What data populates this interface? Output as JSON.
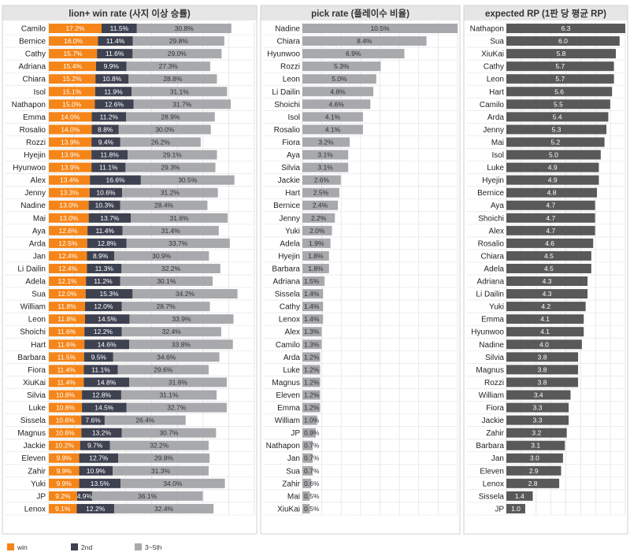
{
  "chart_data": [
    {
      "type": "bar",
      "stacked": true,
      "orientation": "horizontal",
      "title": "lion+ win rate (사지 이상 승률)",
      "categories": [
        "Camilo",
        "Bernice",
        "Cathy",
        "Adriana",
        "Chiara",
        "Isol",
        "Nathapon",
        "Emma",
        "Rosalio",
        "Rozzi",
        "Hyejin",
        "Hyunwoo",
        "Alex",
        "Jenny",
        "Nadine",
        "Mai",
        "Aya",
        "Arda",
        "Jan",
        "Li Dailin",
        "Adela",
        "Sua",
        "William",
        "Leon",
        "Shoichi",
        "Hart",
        "Barbara",
        "Fiora",
        "XiuKai",
        "Silvia",
        "Luke",
        "Sissela",
        "Magnus",
        "Jackie",
        "Eleven",
        "Zahir",
        "Yuki",
        "JP",
        "Lenox"
      ],
      "series": [
        {
          "name": "win",
          "color": "#f58518",
          "values": [
            17.2,
            16.0,
            15.7,
            15.4,
            15.2,
            15.1,
            15.0,
            14.0,
            14.0,
            13.9,
            13.9,
            13.9,
            13.4,
            13.3,
            13.0,
            13.0,
            12.6,
            12.5,
            12.4,
            12.4,
            12.1,
            12.0,
            11.8,
            11.8,
            11.6,
            11.6,
            11.5,
            11.4,
            11.4,
            10.8,
            10.8,
            10.6,
            10.6,
            10.2,
            9.9,
            9.9,
            9.9,
            9.2,
            9.1
          ]
        },
        {
          "name": "2nd",
          "color": "#3d4150",
          "values": [
            11.5,
            11.4,
            11.6,
            9.9,
            10.8,
            11.9,
            12.6,
            11.2,
            8.8,
            9.4,
            11.8,
            11.1,
            16.6,
            10.6,
            10.3,
            13.7,
            11.4,
            12.8,
            8.9,
            11.3,
            11.2,
            15.3,
            12.0,
            14.5,
            12.2,
            14.6,
            9.5,
            11.1,
            14.8,
            12.8,
            14.5,
            7.6,
            13.2,
            9.7,
            12.7,
            10.9,
            13.5,
            4.9,
            12.2
          ]
        },
        {
          "name": "3~5th",
          "color": "#a7a9ac",
          "values": [
            30.8,
            29.8,
            29.0,
            27.3,
            28.8,
            31.1,
            31.7,
            28.9,
            30.0,
            26.2,
            29.1,
            29.3,
            30.5,
            31.2,
            28.4,
            31.6,
            31.4,
            33.7,
            30.9,
            32.2,
            30.1,
            34.2,
            28.7,
            33.9,
            32.4,
            33.8,
            34.6,
            29.6,
            31.8,
            31.1,
            32.7,
            26.4,
            30.7,
            32.2,
            29.8,
            31.3,
            34.0,
            36.1,
            32.4
          ]
        }
      ],
      "xlim": [
        0,
        67
      ]
    },
    {
      "type": "bar",
      "orientation": "horizontal",
      "title": "pick rate (플레이수 비율)",
      "color": "#a7a9ac",
      "categories": [
        "Nadine",
        "Chiara",
        "Hyunwoo",
        "Rozzi",
        "Leon",
        "Li Dailin",
        "Shoichi",
        "Isol",
        "Rosalio",
        "Fiora",
        "Aya",
        "Silvia",
        "Jackie",
        "Hart",
        "Bernice",
        "Jenny",
        "Yuki",
        "Adela",
        "Hyejin",
        "Barbara",
        "Adriana",
        "Sissela",
        "Cathy",
        "Lenox",
        "Alex",
        "Camilo",
        "Arda",
        "Luke",
        "Magnus",
        "Eleven",
        "Emma",
        "William",
        "JP",
        "Nathapon",
        "Jan",
        "Sua",
        "Zahir",
        "Mai",
        "XiuKai"
      ],
      "values": [
        10.5,
        8.4,
        6.9,
        5.3,
        5.0,
        4.8,
        4.6,
        4.1,
        4.1,
        3.2,
        3.1,
        3.1,
        2.6,
        2.5,
        2.4,
        2.2,
        2.0,
        1.9,
        1.8,
        1.8,
        1.5,
        1.4,
        1.4,
        1.4,
        1.3,
        1.3,
        1.2,
        1.2,
        1.2,
        1.2,
        1.2,
        1.0,
        0.9,
        0.7,
        0.7,
        0.7,
        0.6,
        0.5,
        0.5
      ],
      "xlim": [
        0,
        10.5
      ]
    },
    {
      "type": "bar",
      "orientation": "horizontal",
      "title": "expected RP (1판 당 평균 RP)",
      "color": "#595959",
      "categories": [
        "Nathapon",
        "Sua",
        "XiuKai",
        "Cathy",
        "Leon",
        "Hart",
        "Camilo",
        "Arda",
        "Jenny",
        "Mai",
        "Isol",
        "Luke",
        "Hyejin",
        "Bernice",
        "Aya",
        "Shoichi",
        "Alex",
        "Rosalio",
        "Chiara",
        "Adela",
        "Adriana",
        "Li Dailin",
        "Yuki",
        "Emma",
        "Hyunwoo",
        "Nadine",
        "Silvia",
        "Magnus",
        "Rozzi",
        "William",
        "Fiora",
        "Jackie",
        "Zahir",
        "Barbara",
        "Jan",
        "Eleven",
        "Lenox",
        "Sissela",
        "JP"
      ],
      "values": [
        6.3,
        6.0,
        5.8,
        5.7,
        5.7,
        5.6,
        5.5,
        5.4,
        5.3,
        5.2,
        5.0,
        4.9,
        4.9,
        4.8,
        4.7,
        4.7,
        4.7,
        4.6,
        4.5,
        4.5,
        4.3,
        4.3,
        4.2,
        4.1,
        4.1,
        4.0,
        3.8,
        3.8,
        3.8,
        3.4,
        3.3,
        3.3,
        3.2,
        3.1,
        3.0,
        2.9,
        2.8,
        1.4,
        1.0
      ],
      "xlim": [
        0,
        6.3
      ]
    }
  ],
  "legend": {
    "win": "win",
    "second": "2nd",
    "rest": "3~5th",
    "placement": "bottom-left"
  },
  "styles": {
    "label_orange": "#ffffff",
    "label_dark": "#ffffff",
    "label_gray": "#333333"
  }
}
